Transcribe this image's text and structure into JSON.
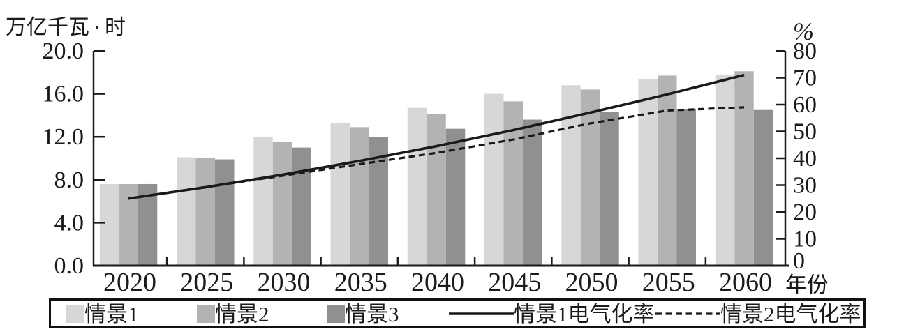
{
  "chart_data": {
    "type": "bar+line",
    "categories": [
      "2020",
      "2025",
      "2030",
      "2035",
      "2040",
      "2045",
      "2050",
      "2055",
      "2060"
    ],
    "bar_series": [
      {
        "name": "情景1",
        "color": "#d7d7d7",
        "values": [
          7.6,
          10.1,
          12.0,
          13.3,
          14.7,
          16.0,
          16.8,
          17.4,
          17.8
        ]
      },
      {
        "name": "情景2",
        "color": "#b3b3b3",
        "values": [
          7.6,
          10.0,
          11.5,
          12.9,
          14.1,
          15.3,
          16.4,
          17.7,
          18.1
        ]
      },
      {
        "name": "情景3",
        "color": "#909090",
        "values": [
          7.6,
          9.9,
          11.0,
          12.0,
          12.75,
          13.6,
          14.3,
          14.6,
          14.5
        ]
      }
    ],
    "line_series": [
      {
        "name": "情景1电气化率",
        "style": "solid",
        "color": "#1a1a1a",
        "values": [
          25,
          29.2,
          33.9,
          39,
          44.5,
          50.5,
          57,
          63.8,
          71
        ]
      },
      {
        "name": "情景2电气化率",
        "style": "dashed",
        "color": "#1a1a1a",
        "values": [
          25,
          29.3,
          33.5,
          37.8,
          42,
          47,
          53,
          57.8,
          59
        ]
      }
    ],
    "left_axis": {
      "title": "万亿千瓦·时",
      "min": 0,
      "max": 20,
      "step": 4,
      "tick_labels": [
        "0.0",
        "4.0",
        "8.0",
        "12.0",
        "16.0",
        "20.0"
      ]
    },
    "right_axis": {
      "title": "%",
      "min": 0,
      "max": 80,
      "step": 10,
      "tick_labels": [
        "0",
        "10",
        "20",
        "30",
        "40",
        "50",
        "60",
        "70",
        "80"
      ]
    },
    "x_axis": {
      "title": "年份"
    },
    "legend_position": "bottom",
    "grid": false
  }
}
